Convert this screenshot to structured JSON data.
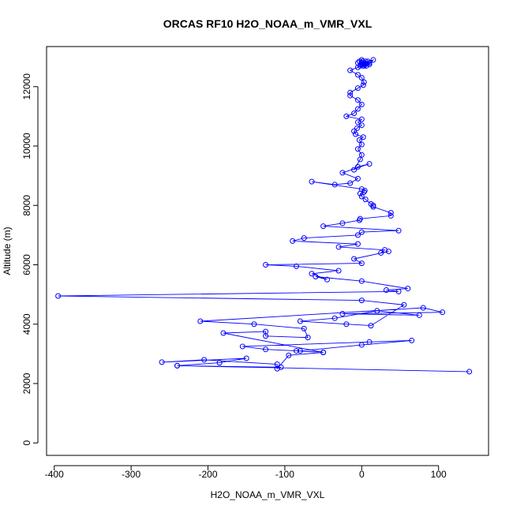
{
  "chart_data": {
    "type": "line",
    "title": "ORCAS RF10 H2O_NOAA_m_VMR_VXL",
    "xlabel": "H2O_NOAA_m_VMR_VXL",
    "ylabel": "Altitude (m)",
    "xlim": [
      -410,
      165
    ],
    "ylim": [
      -420,
      13350
    ],
    "x_ticks": [
      -400,
      -300,
      -200,
      -100,
      0,
      100
    ],
    "y_ticks": [
      0,
      2000,
      4000,
      6000,
      8000,
      10000,
      12000
    ],
    "x_tick_labels": [
      "-400",
      "-300",
      "-200",
      "-100",
      "0",
      "100"
    ],
    "y_tick_labels": [
      "0",
      "2000",
      "4000",
      "6000",
      "8000",
      "10000",
      "12000"
    ],
    "marker": "open-circle",
    "grid": false,
    "legend": "none",
    "colors": {
      "series": "#0000ff",
      "axis": "#000000"
    },
    "series": [
      {
        "x": [
          140,
          -240,
          -105,
          -240,
          -185,
          -150,
          -260,
          -205,
          -110,
          -110,
          -95,
          -50,
          -80,
          0,
          65,
          10,
          -155,
          -125,
          -85,
          -50,
          -180,
          -125,
          -125,
          -70,
          -75,
          -140,
          -210,
          80,
          105,
          -25,
          75,
          20,
          -35,
          -80,
          -20,
          12,
          55,
          0,
          -395,
          48,
          32,
          60,
          0,
          -60,
          -45,
          -65,
          -30,
          -85,
          -125,
          0,
          -10,
          35,
          25,
          30,
          -30,
          -5,
          -90,
          -75,
          -5,
          0,
          48,
          -50,
          -25,
          -3,
          -2,
          38,
          38,
          15,
          15,
          12,
          5,
          0,
          -2,
          3,
          4,
          0,
          -65,
          -35,
          -15,
          -5,
          -25,
          10,
          -5,
          -10,
          -2,
          0,
          -5,
          0,
          -3,
          2,
          -8,
          -10,
          -6,
          0,
          -5,
          0,
          -20,
          -10,
          -5,
          0,
          -5,
          -15,
          -15,
          -5,
          2,
          3,
          0,
          -5,
          -15,
          -5,
          -2,
          -1,
          0,
          -3,
          0,
          -1,
          -5,
          3,
          1,
          5,
          3,
          2,
          0,
          5,
          10,
          15,
          0,
          3,
          6,
          8,
          10,
          2,
          4
        ],
        "y": [
          2400,
          2600,
          2550,
          2600,
          2700,
          2850,
          2720,
          2800,
          2650,
          2500,
          2950,
          3050,
          3100,
          3300,
          3450,
          3400,
          3250,
          3150,
          3100,
          3050,
          3700,
          3750,
          3600,
          3550,
          3850,
          4000,
          4100,
          4550,
          4400,
          4350,
          4300,
          4450,
          4200,
          4100,
          4000,
          3950,
          4650,
          4800,
          4950,
          5100,
          5150,
          5200,
          5450,
          5600,
          5500,
          5700,
          5800,
          5950,
          6000,
          6050,
          6200,
          6450,
          6400,
          6500,
          6600,
          6700,
          6800,
          6900,
          7000,
          7100,
          7150,
          7300,
          7400,
          7500,
          7550,
          7650,
          7750,
          7950,
          8000,
          8050,
          8200,
          8300,
          8400,
          8450,
          8500,
          8550,
          8800,
          8700,
          8750,
          8900,
          9100,
          9400,
          9300,
          9200,
          9550,
          9700,
          9900,
          10050,
          10200,
          10300,
          10400,
          10500,
          10600,
          10700,
          10800,
          10900,
          11000,
          11100,
          11250,
          11400,
          11550,
          11700,
          11800,
          11950,
          12050,
          12150,
          12300,
          12400,
          12550,
          12650,
          12700,
          12750,
          12800,
          12850,
          12900,
          12750,
          12800,
          12700,
          12850,
          12750,
          12800,
          12700,
          12800,
          12850,
          12750,
          12900,
          12800,
          12750,
          12700,
          12850,
          12800,
          12750,
          12800
        ]
      }
    ]
  }
}
